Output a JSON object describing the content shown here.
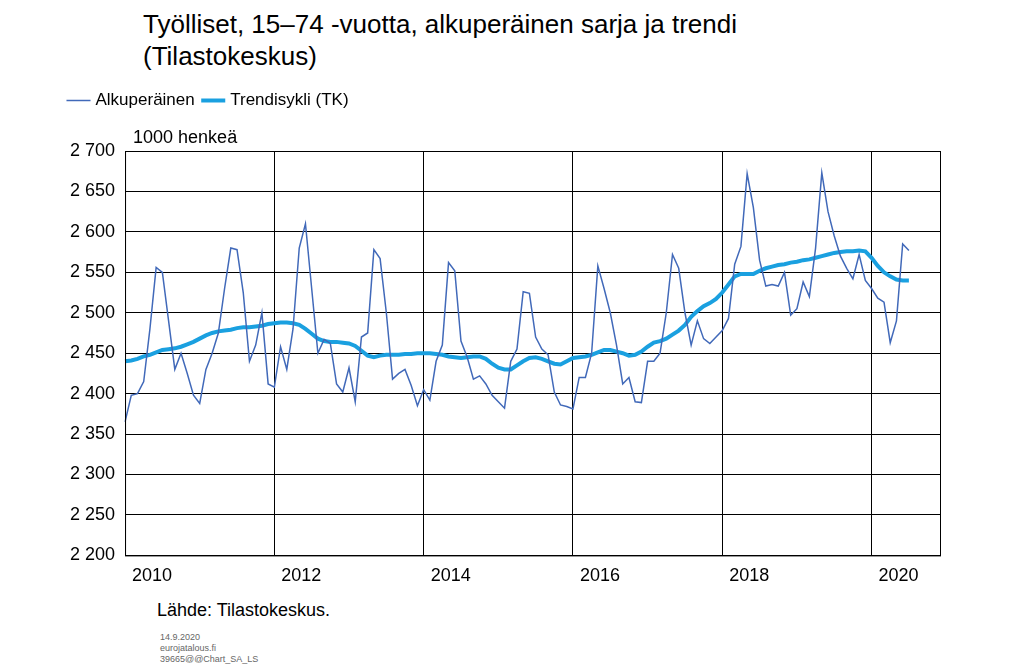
{
  "chart_data": {
    "type": "line",
    "title": "Työlliset, 15–74 -vuotta, alkuperäinen sarja ja trendi (Tilastokeskus)",
    "y_label": "1000 henkeä",
    "source": "Lähde:  Tilastokeskus.",
    "footer": [
      "14.9.2020",
      "eurojatalous.fi",
      "39665@@Chart_SA_LS"
    ],
    "categories": [
      "2010",
      null,
      null,
      null,
      null,
      null,
      null,
      null,
      null,
      null,
      null,
      null,
      null,
      null,
      null,
      null,
      null,
      null,
      null,
      null,
      null,
      null,
      null,
      null,
      "2012",
      null,
      null,
      null,
      null,
      null,
      null,
      null,
      null,
      null,
      null,
      null,
      null,
      null,
      null,
      null,
      null,
      null,
      null,
      null,
      null,
      null,
      null,
      null,
      "2014",
      null,
      null,
      null,
      null,
      null,
      null,
      null,
      null,
      null,
      null,
      null,
      null,
      null,
      null,
      null,
      null,
      null,
      null,
      null,
      null,
      null,
      null,
      null,
      "2016",
      null,
      null,
      null,
      null,
      null,
      null,
      null,
      null,
      null,
      null,
      null,
      null,
      null,
      null,
      null,
      null,
      null,
      null,
      null,
      null,
      null,
      null,
      null,
      "2018",
      null,
      null,
      null,
      null,
      null,
      null,
      null,
      null,
      null,
      null,
      null,
      null,
      null,
      null,
      null,
      null,
      null,
      null,
      null,
      null,
      null,
      null,
      null,
      "2020",
      null,
      null,
      null,
      null,
      null,
      null,
      null,
      null,
      null,
      null,
      null
    ],
    "series": [
      {
        "name": "Alkuperäinen",
        "color": "#4169b9",
        "values": [
          2365,
          2398,
          2400,
          2415,
          2480,
          2556,
          2550,
          2490,
          2430,
          2450,
          2425,
          2398,
          2388,
          2430,
          2450,
          2475,
          2530,
          2580,
          2578,
          2525,
          2440,
          2460,
          2500,
          2412,
          2408,
          2458,
          2430,
          2480,
          2580,
          2610,
          2530,
          2450,
          2467,
          2462,
          2412,
          2402,
          2432,
          2390,
          2470,
          2475,
          2578,
          2567,
          2500,
          2418,
          2425,
          2430,
          2410,
          2385,
          2405,
          2392,
          2440,
          2460,
          2562,
          2552,
          2465,
          2445,
          2418,
          2422,
          2412,
          2398,
          2390,
          2382,
          2440,
          2455,
          2526,
          2524,
          2470,
          2455,
          2448,
          2402,
          2386,
          2384,
          2381,
          2420,
          2420,
          2450,
          2558,
          2530,
          2500,
          2460,
          2412,
          2420,
          2390,
          2389,
          2440,
          2440,
          2450,
          2500,
          2572,
          2555,
          2500,
          2460,
          2490,
          2468,
          2462,
          2470,
          2478,
          2493,
          2560,
          2582,
          2672,
          2630,
          2565,
          2533,
          2535,
          2533,
          2550,
          2497,
          2505,
          2538,
          2520,
          2580,
          2673,
          2625,
          2595,
          2570,
          2555,
          2542,
          2572,
          2540,
          2530,
          2518,
          2513,
          2463,
          2490,
          2585,
          2577,
          null,
          null,
          null,
          null,
          null
        ]
      },
      {
        "name": "Trendisykli (TK)",
        "color": "#1aa0e0",
        "values": [
          2440,
          2441,
          2443,
          2446,
          2448,
          2451,
          2454,
          2455,
          2456,
          2458,
          2461,
          2464,
          2468,
          2472,
          2475,
          2477,
          2478,
          2479,
          2481,
          2482,
          2482,
          2483,
          2484,
          2486,
          2487,
          2488,
          2488,
          2487,
          2485,
          2480,
          2474,
          2468,
          2465,
          2464,
          2464,
          2463,
          2462,
          2459,
          2453,
          2447,
          2445,
          2447,
          2448,
          2448,
          2448,
          2449,
          2449,
          2450,
          2450,
          2450,
          2449,
          2448,
          2446,
          2445,
          2444,
          2445,
          2446,
          2446,
          2443,
          2437,
          2432,
          2430,
          2430,
          2435,
          2440,
          2444,
          2445,
          2443,
          2440,
          2437,
          2436,
          2440,
          2444,
          2445,
          2446,
          2448,
          2451,
          2454,
          2454,
          2452,
          2450,
          2447,
          2448,
          2452,
          2458,
          2463,
          2465,
          2468,
          2473,
          2478,
          2485,
          2495,
          2502,
          2508,
          2512,
          2517,
          2525,
          2535,
          2545,
          2548,
          2548,
          2548,
          2552,
          2555,
          2557,
          2559,
          2560,
          2562,
          2563,
          2565,
          2566,
          2568,
          2570,
          2572,
          2574,
          2575,
          2576,
          2576,
          2577,
          2576,
          2568,
          2558,
          2550,
          2545,
          2541,
          2540,
          2540,
          null,
          null,
          null,
          null,
          null
        ]
      }
    ],
    "ylim": [
      2200,
      2700
    ],
    "yticks": [
      {
        "value": 2200,
        "label": "2 200"
      },
      {
        "value": 2250,
        "label": "2 250"
      },
      {
        "value": 2300,
        "label": "2 300"
      },
      {
        "value": 2350,
        "label": "2 350"
      },
      {
        "value": 2400,
        "label": "2 400"
      },
      {
        "value": 2450,
        "label": "2 450"
      },
      {
        "value": 2500,
        "label": "2 500"
      },
      {
        "value": 2550,
        "label": "2 550"
      },
      {
        "value": 2600,
        "label": "2 600"
      },
      {
        "value": 2650,
        "label": "2 650"
      },
      {
        "value": 2700,
        "label": "2 700"
      }
    ],
    "grid": true,
    "legend": "top-left"
  }
}
